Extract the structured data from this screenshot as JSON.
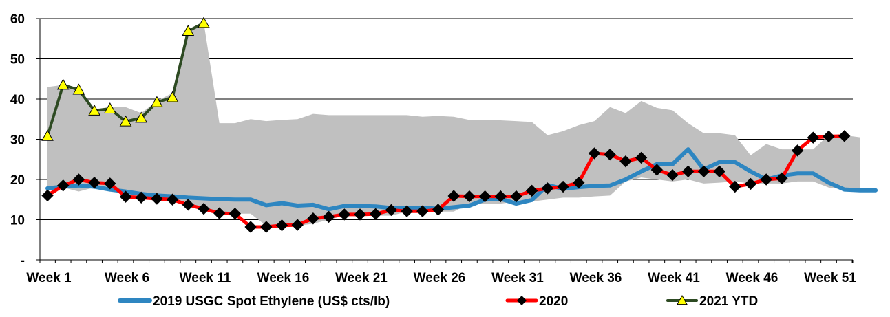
{
  "chart_data": {
    "type": "line",
    "title": "",
    "xlabel": "",
    "ylabel": "",
    "ylim": [
      0,
      60
    ],
    "y_ticks": [
      {
        "value": 0,
        "label": "-"
      },
      {
        "value": 10,
        "label": "10"
      },
      {
        "value": 20,
        "label": "20"
      },
      {
        "value": 30,
        "label": "30"
      },
      {
        "value": 40,
        "label": "40"
      },
      {
        "value": 50,
        "label": "50"
      },
      {
        "value": 60,
        "label": "60"
      }
    ],
    "x_tick_labels": [
      {
        "week": 1,
        "label": "Week 1"
      },
      {
        "week": 6,
        "label": "Week 6"
      },
      {
        "week": 11,
        "label": "Week 11"
      },
      {
        "week": 16,
        "label": "Week 16"
      },
      {
        "week": 21,
        "label": "Week 21"
      },
      {
        "week": 26,
        "label": "Week 26"
      },
      {
        "week": 31,
        "label": "Week 31"
      },
      {
        "week": 36,
        "label": "Week 36"
      },
      {
        "week": 41,
        "label": "Week 41"
      },
      {
        "week": 46,
        "label": "Week 46"
      },
      {
        "week": 51,
        "label": "Week 51"
      }
    ],
    "grid": "horizontal",
    "legend_position": "bottom",
    "band": {
      "color": "#c0c0c0",
      "upper": [
        43,
        43.5,
        42.5,
        37.5,
        38,
        38,
        36.5,
        39.5,
        41.5,
        57,
        59,
        34,
        34,
        35,
        34.5,
        34.8,
        35,
        36.3,
        36,
        36,
        36,
        36,
        36,
        36,
        35.6,
        35.8,
        35.6,
        34.8,
        34.7,
        34.7,
        34.5,
        34.3,
        31,
        32,
        33.5,
        34.5,
        38,
        36.5,
        39.5,
        37.8,
        37.2,
        34,
        31.5,
        31.5,
        31,
        26,
        28.8,
        27.5,
        27.5,
        27.5,
        31,
        31,
        30.5
      ],
      "lower": [
        17.5,
        18,
        17,
        18,
        17.5,
        16.5,
        15.5,
        15.5,
        15,
        14.5,
        12.5,
        11.5,
        11.5,
        11.5,
        8.5,
        8.5,
        8.5,
        9,
        10,
        11,
        11,
        11,
        11,
        12,
        12,
        12,
        12,
        14,
        14,
        14,
        14.5,
        14.5,
        15,
        15.5,
        15.5,
        15.8,
        16,
        19.5,
        20.5,
        20,
        19.5,
        20,
        19,
        19.2,
        19.5,
        19,
        19,
        19,
        19.5,
        19.5,
        18,
        17.5,
        17.3
      ]
    },
    "series": [
      {
        "name": "2019 USGC Spot Ethylene (US$ cts/lb)",
        "color": "#2e86c1",
        "marker": "none",
        "start_week": 1,
        "values": [
          17.8,
          18.2,
          18.5,
          18.2,
          17.5,
          17,
          16.4,
          16,
          15.8,
          15.5,
          15.3,
          15.1,
          15,
          15,
          13.6,
          14.1,
          13.5,
          13.7,
          12.6,
          13.4,
          13.4,
          13.3,
          12.9,
          12.8,
          13,
          12.7,
          13.1,
          13.5,
          15,
          15.2,
          14,
          14.9,
          18.6,
          17.7,
          18.1,
          18.4,
          18.5,
          20,
          22,
          23.8,
          23.8,
          27.5,
          22.5,
          24.3,
          24.3,
          22,
          20,
          21,
          21.5,
          21.5,
          19.2,
          17.5,
          17.3,
          17.3
        ]
      },
      {
        "name": "2020",
        "color": "#ff0000",
        "marker": "diamond",
        "start_week": 1,
        "values": [
          16,
          18.5,
          20,
          19.2,
          19,
          15.7,
          15.5,
          15.2,
          15,
          13.7,
          12.7,
          11.6,
          11.5,
          8.2,
          8.2,
          8.6,
          8.7,
          10.3,
          10.7,
          11.3,
          11.3,
          11.4,
          12.4,
          12.1,
          12.1,
          12.5,
          15.9,
          15.8,
          15.8,
          15.8,
          15.8,
          17.2,
          17.8,
          18.2,
          19.2,
          26.5,
          26.2,
          24.5,
          25.4,
          22.4,
          21.1,
          22,
          22,
          22,
          18.2,
          18.9,
          20,
          20.3,
          27.2,
          30.4,
          30.7,
          30.8
        ]
      },
      {
        "name": "2021 YTD",
        "color": "#2d4a22",
        "marker": "triangle",
        "start_week": 1,
        "values": [
          30.8,
          43.5,
          42.3,
          37.1,
          37.6,
          34.4,
          35.3,
          39.2,
          40.4,
          56.9,
          58.9
        ]
      }
    ]
  }
}
